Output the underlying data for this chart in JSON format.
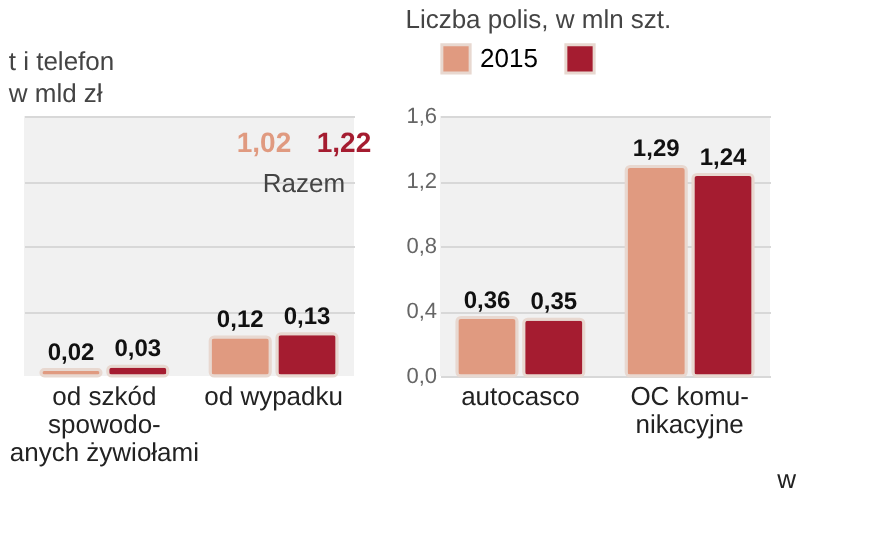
{
  "chart_data": [
    {
      "type": "bar",
      "title": "t i telefon",
      "subtitle": "w mld zł",
      "categories": [
        "od szkód\nspowodo-\nanych żywiołami",
        "od wypadku"
      ],
      "series": [
        {
          "name": "2015",
          "color": "#e09a80",
          "values": [
            0.02,
            0.12
          ],
          "value_labels": [
            "0,02",
            "0,12"
          ]
        },
        {
          "name": null,
          "color": "#a51c30",
          "values": [
            0.03,
            0.13
          ],
          "value_labels": [
            "0,03",
            "0,13"
          ]
        }
      ],
      "ylim": [
        0,
        0.8
      ],
      "yticks": [
        {
          "value": 0.2,
          "label": null
        },
        {
          "value": 0.4,
          "label": null
        },
        {
          "value": 0.6,
          "label": null
        },
        {
          "value": 0.8,
          "label": null
        }
      ],
      "grid": "y",
      "tick_labels": "x",
      "annotations": [
        "1,02",
        "1,22",
        "Razem"
      ]
    },
    {
      "type": "bar",
      "title": "Liczba polis, w mln szt.",
      "categories": [
        "autocasco",
        "OC komu-\nnikacyjne"
      ],
      "series": [
        {
          "name": "2015",
          "color": "#e09a80",
          "values": [
            0.36,
            1.29
          ],
          "value_labels": [
            "0,36",
            "1,29"
          ]
        },
        {
          "name": null,
          "color": "#a51c30",
          "values": [
            0.35,
            1.24
          ],
          "value_labels": [
            "0,35",
            "1,24"
          ]
        }
      ],
      "ylim": [
        0,
        1.6
      ],
      "yticks": [
        {
          "value": 0,
          "label": "0,0"
        },
        {
          "value": 0.4,
          "label": "0,4"
        },
        {
          "value": 0.8,
          "label": "0,8"
        },
        {
          "value": 1.2,
          "label": "1,2"
        },
        {
          "value": 1.6,
          "label": "1,6"
        }
      ],
      "grid": "y",
      "annotations": [
        "w"
      ],
      "legend": "top right"
    }
  ]
}
